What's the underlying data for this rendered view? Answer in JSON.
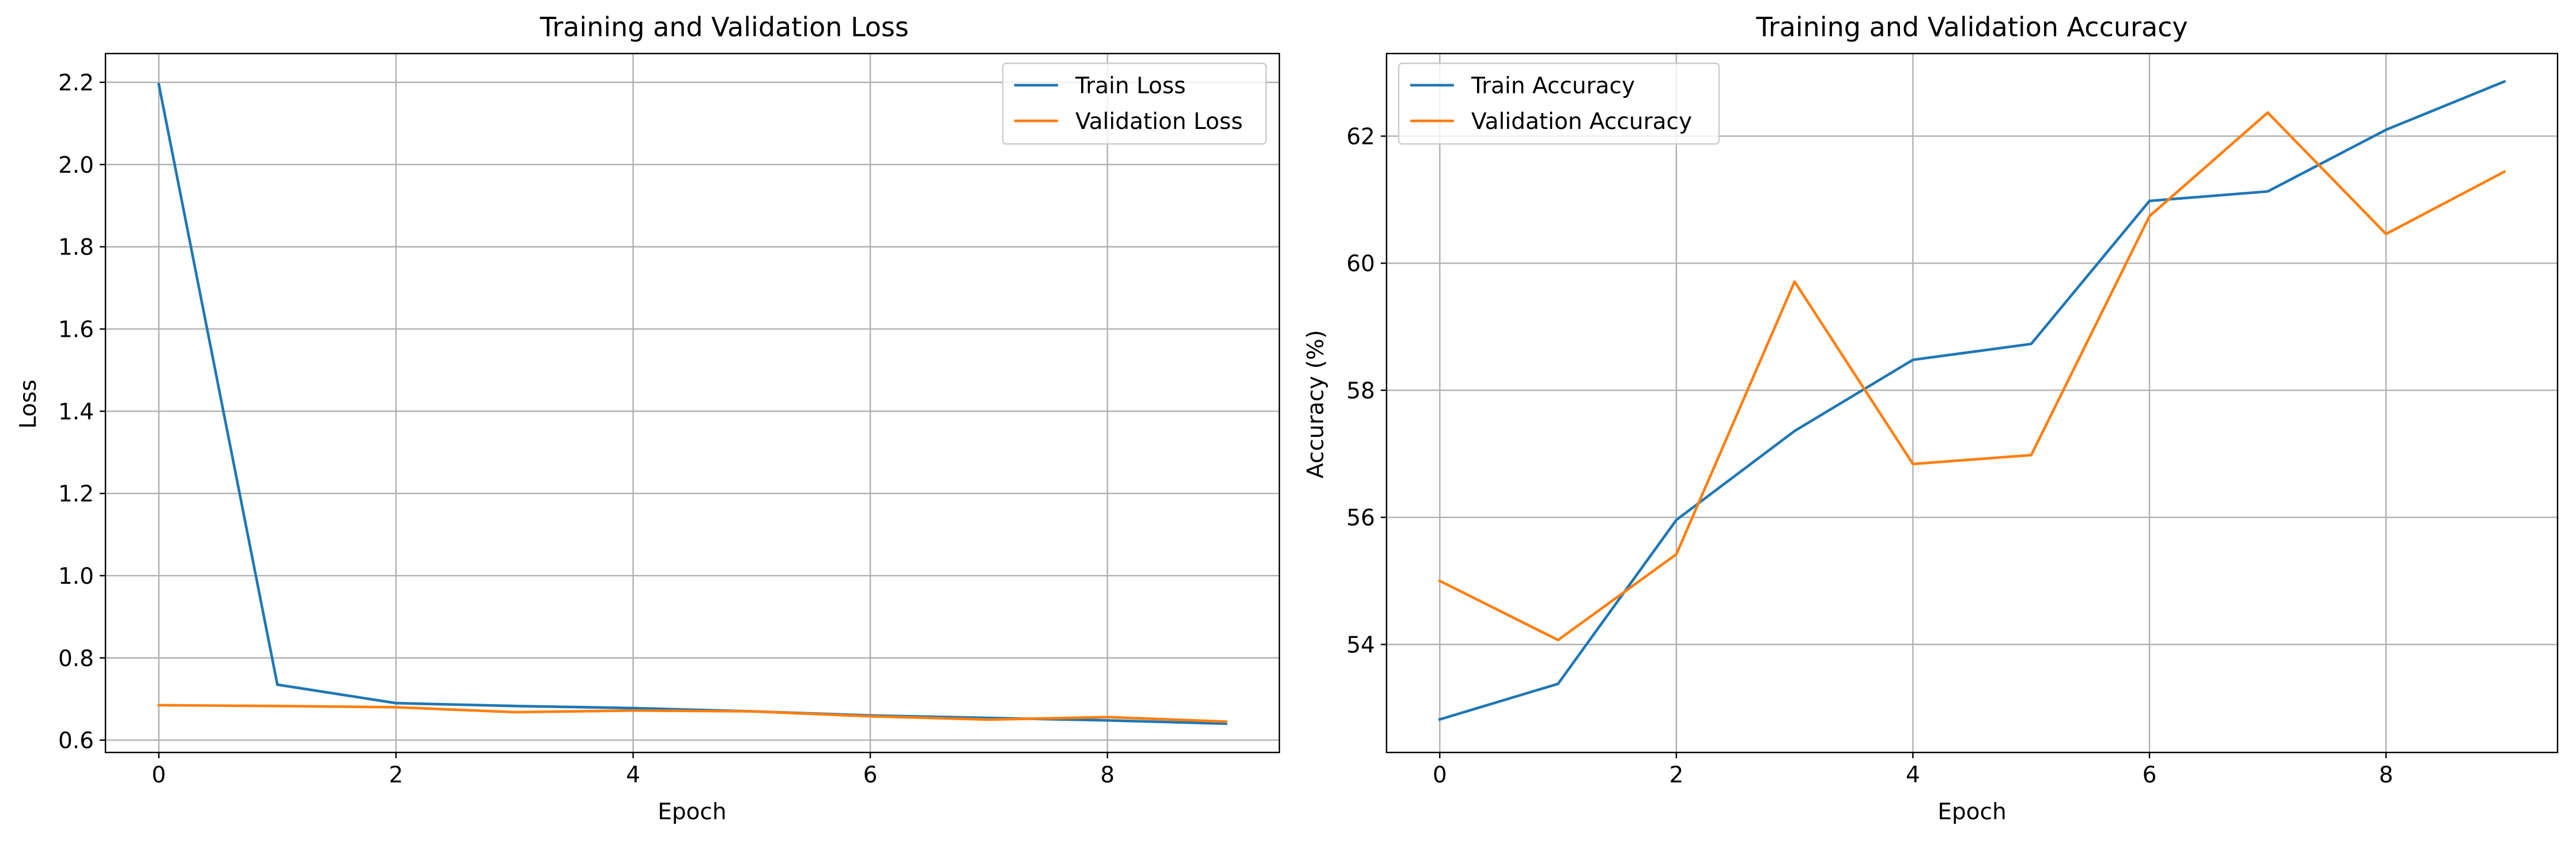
{
  "chart_data": [
    {
      "type": "line",
      "title": "Training and Validation Loss",
      "xlabel": "Epoch",
      "ylabel": "Loss",
      "xlim": [
        -0.45,
        9.45
      ],
      "ylim": [
        0.57,
        2.27
      ],
      "xticks": [
        0,
        2,
        4,
        6,
        8
      ],
      "yticks": [
        0.6,
        0.8,
        1.0,
        1.2,
        1.4,
        1.6,
        1.8,
        2.0,
        2.2
      ],
      "ytick_decimals": 1,
      "grid": true,
      "legend_position": "upper right",
      "x": [
        0,
        1,
        2,
        3,
        4,
        5,
        6,
        7,
        8,
        9
      ],
      "series": [
        {
          "name": "Train Loss",
          "color": "#1f77b4",
          "values": [
            2.195,
            0.735,
            0.69,
            0.683,
            0.678,
            0.67,
            0.66,
            0.654,
            0.648,
            0.64
          ]
        },
        {
          "name": "Validation Loss",
          "color": "#ff7f0e",
          "values": [
            0.685,
            0.683,
            0.68,
            0.668,
            0.672,
            0.67,
            0.658,
            0.65,
            0.656,
            0.645
          ]
        }
      ]
    },
    {
      "type": "line",
      "title": "Training and Validation Accuracy",
      "xlabel": "Epoch",
      "ylabel": "Accuracy (%)",
      "xlim": [
        -0.45,
        9.45
      ],
      "ylim": [
        52.3,
        63.3
      ],
      "xticks": [
        0,
        2,
        4,
        6,
        8
      ],
      "yticks": [
        54,
        56,
        58,
        60,
        62
      ],
      "ytick_decimals": 0,
      "grid": true,
      "legend_position": "upper left",
      "x": [
        0,
        1,
        2,
        3,
        4,
        5,
        6,
        7,
        8,
        9
      ],
      "series": [
        {
          "name": "Train Accuracy",
          "color": "#1f77b4",
          "values": [
            52.82,
            53.38,
            55.96,
            57.36,
            58.48,
            58.73,
            60.98,
            61.13,
            62.1,
            62.86
          ]
        },
        {
          "name": "Validation Accuracy",
          "color": "#ff7f0e",
          "values": [
            55.0,
            54.07,
            55.42,
            59.71,
            56.84,
            56.98,
            60.74,
            62.37,
            60.46,
            61.44
          ]
        }
      ]
    }
  ]
}
